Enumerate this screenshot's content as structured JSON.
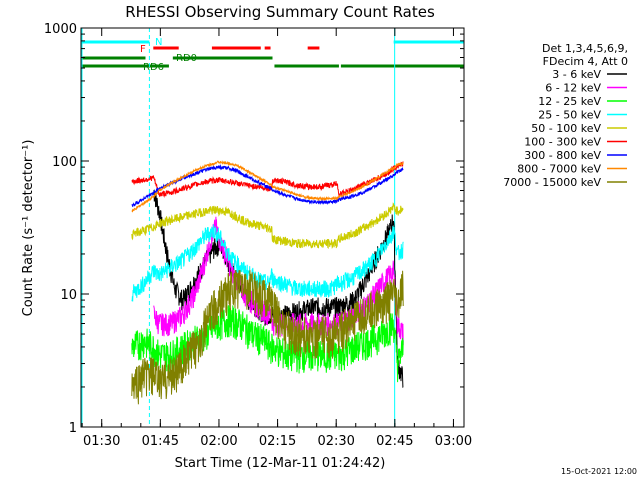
{
  "chart_data": {
    "type": "line",
    "title": "RHESSI Observing Summary Count Rates",
    "xlabel": "Start Time (12-Mar-11 01:24:42)",
    "ylabel": "Count Rate (s⁻¹ detector⁻¹)",
    "yscale": "log",
    "ylim": [
      1,
      1000
    ],
    "xlim_minutes": [
      0,
      98
    ],
    "x_ticks": [
      {
        "label": "01:30",
        "minute": 5.3
      },
      {
        "label": "01:45",
        "minute": 20.3
      },
      {
        "label": "02:00",
        "minute": 35.3
      },
      {
        "label": "02:15",
        "minute": 50.3
      },
      {
        "label": "02:30",
        "minute": 65.3
      },
      {
        "label": "02:45",
        "minute": 80.3
      },
      {
        "label": "03:00",
        "minute": 95.3
      }
    ],
    "y_ticks": [
      {
        "label": "1",
        "value": 1
      },
      {
        "label": "10",
        "value": 10
      },
      {
        "label": "100",
        "value": 100
      },
      {
        "label": "1000",
        "value": 1000
      }
    ],
    "legend_header": [
      "Det 1,3,4,5,6,9,",
      "FDecim 4, Att 0"
    ],
    "series": [
      {
        "name": "3 - 6 keV",
        "color": "#000000",
        "points": [
          [
            18.6,
            60
          ],
          [
            20,
            42
          ],
          [
            22,
            20
          ],
          [
            24,
            11
          ],
          [
            26,
            9
          ],
          [
            28,
            11
          ],
          [
            30,
            14
          ],
          [
            32,
            18
          ],
          [
            34,
            22
          ],
          [
            35.5,
            24
          ],
          [
            37,
            20
          ],
          [
            39,
            14
          ],
          [
            41,
            11
          ],
          [
            43,
            9
          ],
          [
            45,
            8
          ],
          [
            47,
            7
          ],
          [
            48.8,
            7
          ],
          [
            49,
            7
          ],
          [
            52,
            7
          ],
          [
            56,
            7.5
          ],
          [
            60,
            8
          ],
          [
            64,
            8
          ],
          [
            65.6,
            8
          ],
          [
            66,
            8
          ],
          [
            70,
            9
          ],
          [
            73,
            13
          ],
          [
            76,
            20
          ],
          [
            79,
            30
          ],
          [
            80,
            38
          ],
          [
            81,
            3
          ],
          [
            82.5,
            2.3
          ]
        ]
      },
      {
        "name": "6 - 12 keV",
        "color": "#ff00ff",
        "points": [
          [
            18.6,
            7
          ],
          [
            20,
            6
          ],
          [
            23,
            6
          ],
          [
            26,
            7
          ],
          [
            29,
            10
          ],
          [
            31,
            15
          ],
          [
            33,
            25
          ],
          [
            34.5,
            32
          ],
          [
            35.5,
            26
          ],
          [
            37,
            20
          ],
          [
            39,
            14
          ],
          [
            42,
            10
          ],
          [
            45,
            8
          ],
          [
            48.8,
            7
          ],
          [
            49,
            6
          ],
          [
            53,
            6
          ],
          [
            57,
            6
          ],
          [
            61,
            6
          ],
          [
            65.6,
            6
          ],
          [
            66,
            6
          ],
          [
            70,
            7
          ],
          [
            74,
            9
          ],
          [
            77,
            12
          ],
          [
            80,
            15
          ],
          [
            81,
            6
          ],
          [
            82.5,
            5
          ]
        ]
      },
      {
        "name": "12 - 25 keV",
        "color": "#00ff00",
        "points": [
          [
            13,
            4
          ],
          [
            16,
            4.5
          ],
          [
            18.6,
            4
          ],
          [
            20,
            3.5
          ],
          [
            23,
            3.5
          ],
          [
            26,
            4
          ],
          [
            29,
            4.5
          ],
          [
            32,
            5
          ],
          [
            35,
            6
          ],
          [
            38,
            6.5
          ],
          [
            41,
            6
          ],
          [
            44,
            5
          ],
          [
            47,
            4.5
          ],
          [
            48.8,
            4
          ],
          [
            49,
            4
          ],
          [
            53,
            3.5
          ],
          [
            57,
            3.5
          ],
          [
            61,
            3.5
          ],
          [
            65.6,
            3.5
          ],
          [
            66,
            3.5
          ],
          [
            70,
            4
          ],
          [
            74,
            4.5
          ],
          [
            77,
            5
          ],
          [
            80,
            6
          ],
          [
            81,
            3
          ],
          [
            82.5,
            4
          ]
        ]
      },
      {
        "name": "25 - 50 keV",
        "color": "#00ffff",
        "points": [
          [
            13,
            10
          ],
          [
            16,
            12
          ],
          [
            18.6,
            15
          ],
          [
            20,
            14
          ],
          [
            23,
            16
          ],
          [
            26,
            18
          ],
          [
            29,
            22
          ],
          [
            32,
            28
          ],
          [
            34,
            30
          ],
          [
            35.5,
            27
          ],
          [
            37,
            22
          ],
          [
            39,
            18
          ],
          [
            42,
            15
          ],
          [
            45,
            13
          ],
          [
            48,
            12
          ],
          [
            48.8,
            14
          ],
          [
            49,
            13
          ],
          [
            52,
            12
          ],
          [
            55,
            11
          ],
          [
            58,
            11
          ],
          [
            61,
            11
          ],
          [
            64,
            11
          ],
          [
            65.6,
            12
          ],
          [
            66,
            12
          ],
          [
            69,
            13
          ],
          [
            72,
            15
          ],
          [
            75,
            18
          ],
          [
            78,
            24
          ],
          [
            80,
            30
          ],
          [
            81,
            20
          ],
          [
            82.5,
            22
          ]
        ]
      },
      {
        "name": "50 - 100 keV",
        "color": "#cccc00",
        "points": [
          [
            13,
            28
          ],
          [
            16,
            30
          ],
          [
            18.6,
            32
          ],
          [
            20,
            34
          ],
          [
            23,
            36
          ],
          [
            26,
            38
          ],
          [
            29,
            40
          ],
          [
            32,
            42
          ],
          [
            35,
            43
          ],
          [
            38,
            41
          ],
          [
            40,
            38
          ],
          [
            42,
            35
          ],
          [
            45,
            33
          ],
          [
            48.8,
            31
          ],
          [
            49,
            26
          ],
          [
            52,
            25
          ],
          [
            55,
            24
          ],
          [
            58,
            24
          ],
          [
            61,
            24
          ],
          [
            64,
            24
          ],
          [
            65.6,
            24
          ],
          [
            66,
            26
          ],
          [
            69,
            28
          ],
          [
            72,
            31
          ],
          [
            75,
            35
          ],
          [
            78,
            40
          ],
          [
            80,
            45
          ],
          [
            81,
            42
          ],
          [
            82.5,
            44
          ]
        ]
      },
      {
        "name": "100 - 300 keV",
        "color": "#ff0000",
        "points": [
          [
            13,
            70
          ],
          [
            16,
            72
          ],
          [
            18.6,
            75
          ],
          [
            20,
            56
          ],
          [
            23,
            58
          ],
          [
            26,
            62
          ],
          [
            29,
            66
          ],
          [
            32,
            70
          ],
          [
            35,
            72
          ],
          [
            38,
            70
          ],
          [
            40,
            68
          ],
          [
            42,
            66
          ],
          [
            45,
            64
          ],
          [
            48.8,
            62
          ],
          [
            49,
            72
          ],
          [
            52,
            70
          ],
          [
            55,
            66
          ],
          [
            58,
            64
          ],
          [
            61,
            64
          ],
          [
            64,
            66
          ],
          [
            65.6,
            68
          ],
          [
            66,
            56
          ],
          [
            69,
            60
          ],
          [
            72,
            66
          ],
          [
            75,
            72
          ],
          [
            78,
            80
          ],
          [
            80,
            88
          ],
          [
            81,
            92
          ],
          [
            82.5,
            95
          ]
        ]
      },
      {
        "name": "300 - 800 keV",
        "color": "#0000ff",
        "points": [
          [
            13,
            46
          ],
          [
            16,
            52
          ],
          [
            18.6,
            58
          ],
          [
            20,
            62
          ],
          [
            23,
            68
          ],
          [
            26,
            74
          ],
          [
            29,
            80
          ],
          [
            32,
            86
          ],
          [
            35,
            90
          ],
          [
            38,
            88
          ],
          [
            40,
            84
          ],
          [
            42,
            78
          ],
          [
            45,
            70
          ],
          [
            48.8,
            62
          ],
          [
            49,
            60
          ],
          [
            52,
            56
          ],
          [
            55,
            52
          ],
          [
            58,
            50
          ],
          [
            61,
            49
          ],
          [
            64,
            49
          ],
          [
            65.6,
            50
          ],
          [
            66,
            51
          ],
          [
            69,
            54
          ],
          [
            72,
            58
          ],
          [
            75,
            64
          ],
          [
            78,
            72
          ],
          [
            80,
            78
          ],
          [
            81,
            84
          ],
          [
            82.5,
            86
          ]
        ]
      },
      {
        "name": "800 - 7000 keV",
        "color": "#ff8800",
        "points": [
          [
            13,
            42
          ],
          [
            16,
            48
          ],
          [
            18.6,
            54
          ],
          [
            20,
            60
          ],
          [
            23,
            68
          ],
          [
            26,
            76
          ],
          [
            29,
            84
          ],
          [
            32,
            92
          ],
          [
            35,
            98
          ],
          [
            38,
            96
          ],
          [
            40,
            92
          ],
          [
            42,
            86
          ],
          [
            45,
            76
          ],
          [
            48.8,
            66
          ],
          [
            49,
            64
          ],
          [
            52,
            60
          ],
          [
            55,
            56
          ],
          [
            58,
            53
          ],
          [
            61,
            52
          ],
          [
            64,
            52
          ],
          [
            65.6,
            53
          ],
          [
            66,
            54
          ],
          [
            69,
            58
          ],
          [
            72,
            64
          ],
          [
            75,
            72
          ],
          [
            78,
            82
          ],
          [
            80,
            88
          ],
          [
            81,
            94
          ],
          [
            82.5,
            96
          ]
        ]
      },
      {
        "name": "7000 - 15000 keV",
        "color": "#808000",
        "points": [
          [
            13,
            2
          ],
          [
            16,
            2.5
          ],
          [
            18.6,
            2.5
          ],
          [
            20,
            2.2
          ],
          [
            23,
            2.5
          ],
          [
            26,
            3
          ],
          [
            29,
            4
          ],
          [
            32,
            6
          ],
          [
            35,
            9
          ],
          [
            38,
            11
          ],
          [
            41,
            12
          ],
          [
            44,
            11
          ],
          [
            47,
            10
          ],
          [
            48.8,
            9
          ],
          [
            49,
            8
          ],
          [
            52,
            6
          ],
          [
            55,
            5
          ],
          [
            58,
            5
          ],
          [
            61,
            5
          ],
          [
            64,
            5
          ],
          [
            65.6,
            5
          ],
          [
            66,
            5.5
          ],
          [
            69,
            6
          ],
          [
            72,
            7
          ],
          [
            75,
            8
          ],
          [
            78,
            9
          ],
          [
            80,
            10
          ],
          [
            81,
            8
          ],
          [
            82.5,
            12
          ]
        ]
      }
    ],
    "markers": {
      "N": {
        "label": "N",
        "color": "#00ffff",
        "segments": [
          [
            0,
            17.5
          ],
          [
            80,
            98
          ]
        ],
        "dashed_lines_minutes": [
          17.5,
          98
        ],
        "solid_lines_minutes": [
          0,
          80
        ]
      },
      "F": {
        "label": "F",
        "color": "#ff0000",
        "segments": [
          [
            18.5,
            25
          ],
          [
            33.5,
            46
          ],
          [
            47,
            48.5
          ],
          [
            58,
            61
          ]
        ]
      },
      "RD0": {
        "label": "RD0",
        "color": "#008000",
        "segments": [
          [
            0,
            16.5
          ],
          [
            23.5,
            49
          ]
        ]
      },
      "RD6": {
        "label": "RD6",
        "color": "#008000",
        "segments": [
          [
            0,
            22.5
          ],
          [
            49.5,
            66
          ],
          [
            66.5,
            98
          ]
        ]
      }
    },
    "timestamp": "15-Oct-2021 12:00"
  }
}
